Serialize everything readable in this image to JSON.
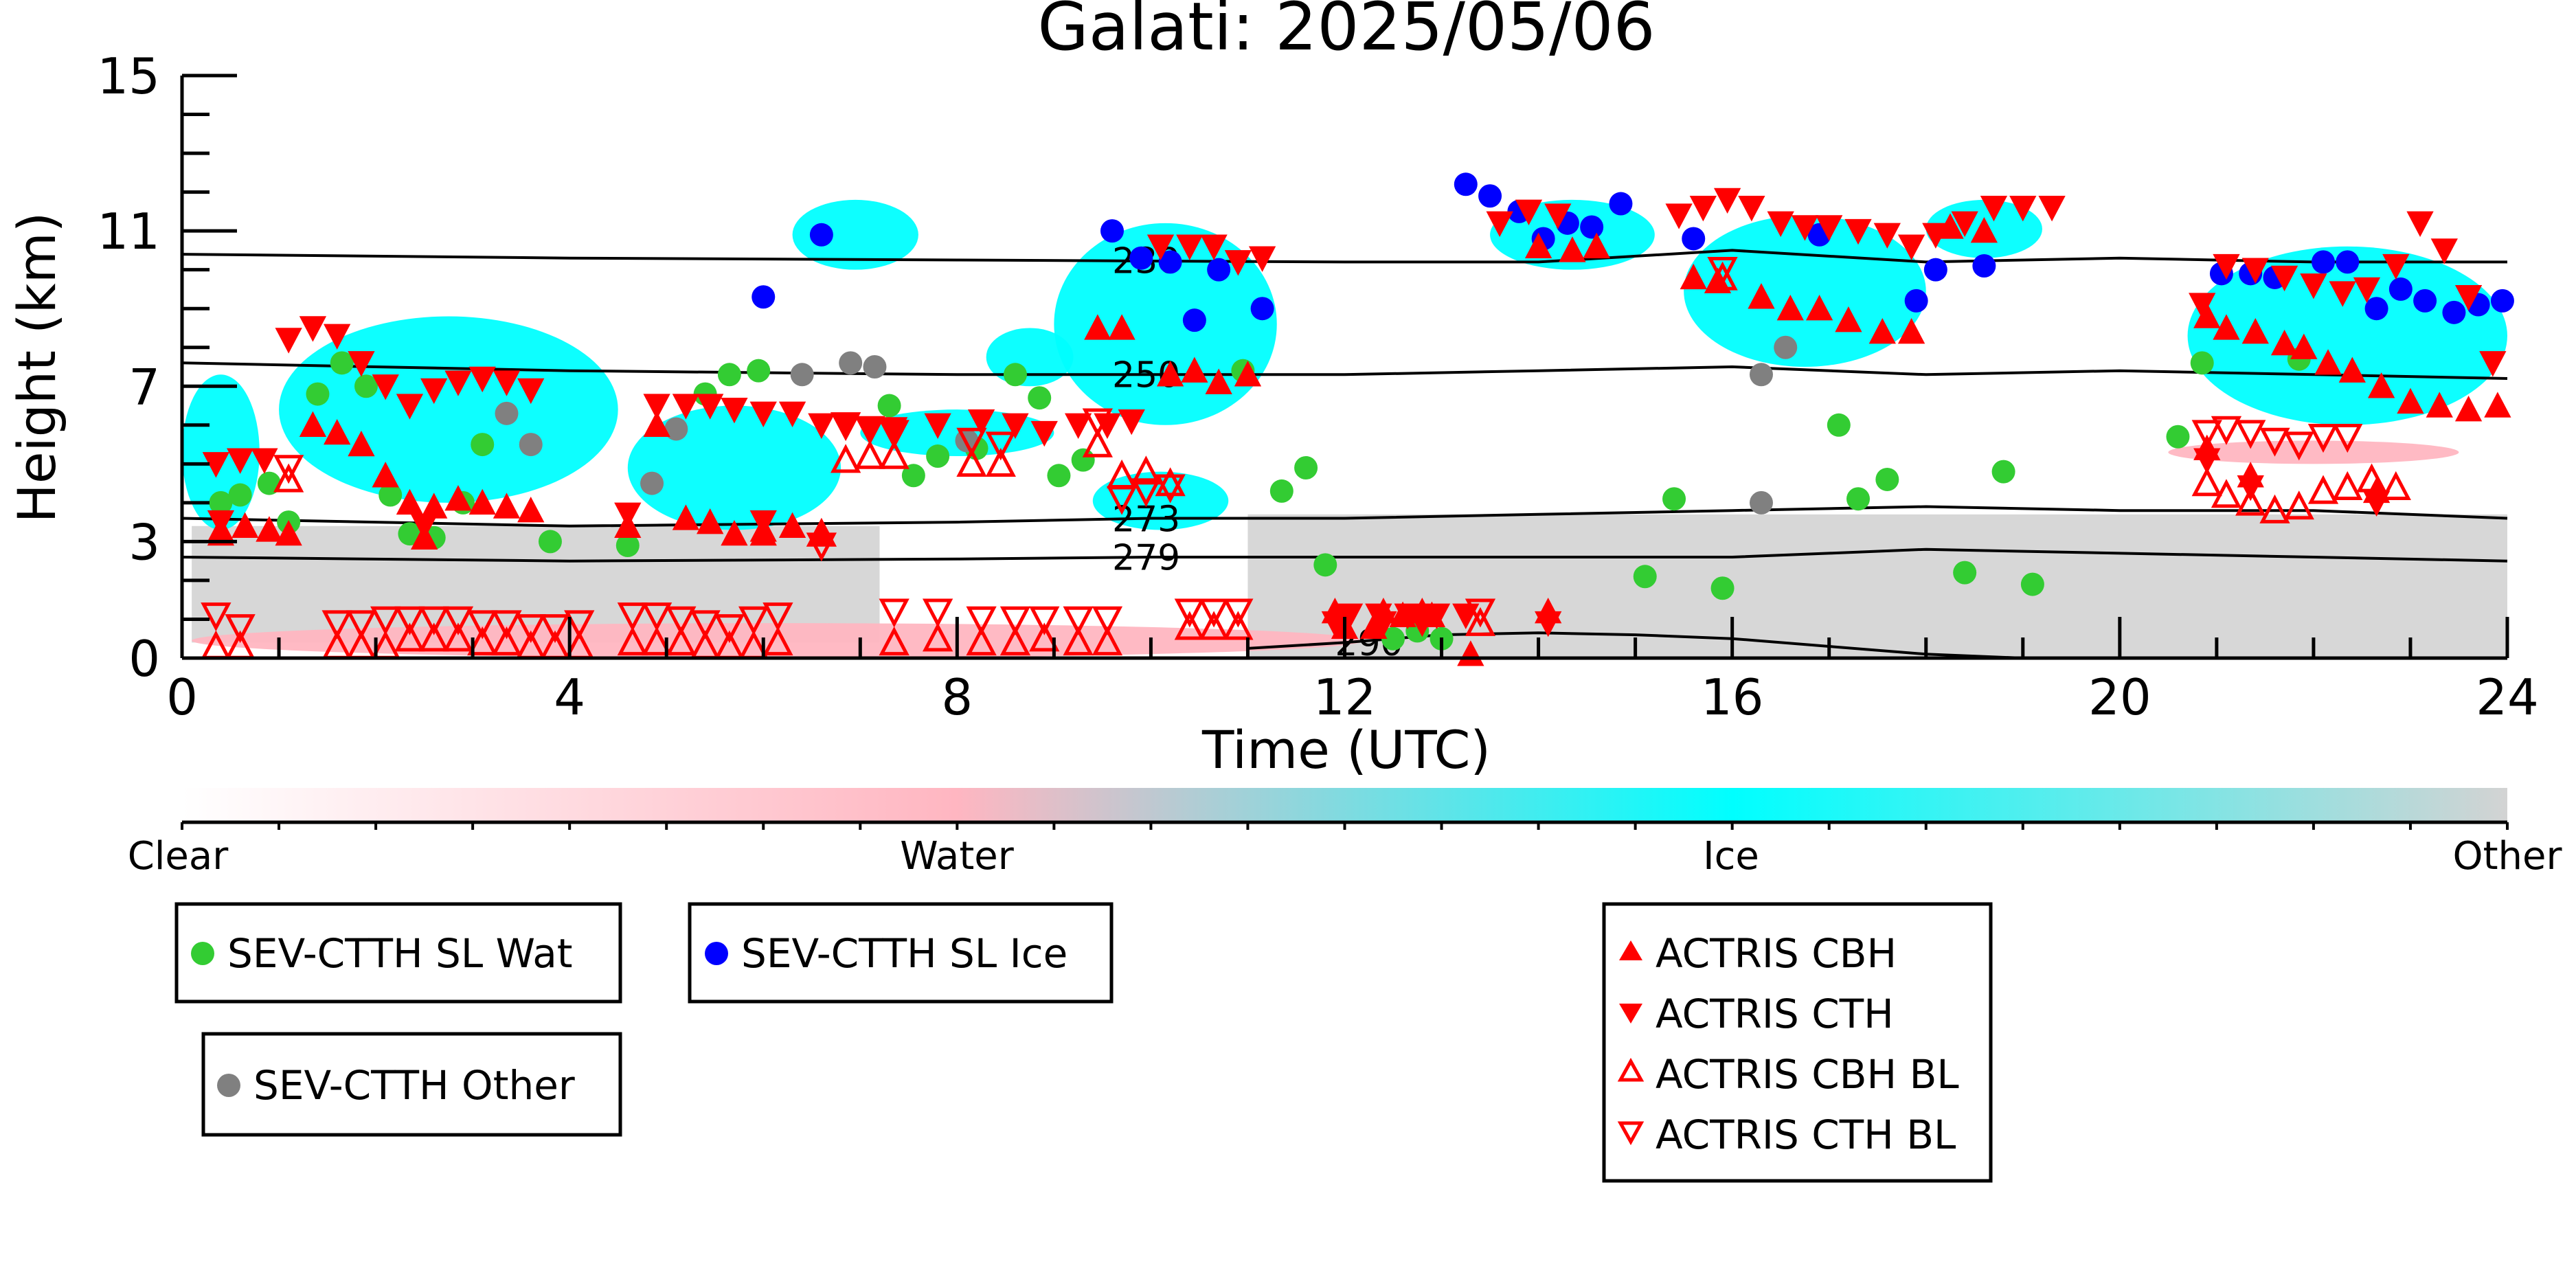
{
  "chart_data": {
    "type": "scatter",
    "title": "Galati: 2025/05/06",
    "xlabel": "Time (UTC)",
    "ylabel": "Height (km)",
    "xlim": [
      0,
      24
    ],
    "ylim": [
      0,
      15
    ],
    "xticks": [
      0,
      4,
      8,
      12,
      16,
      20,
      24
    ],
    "yticks": [
      0,
      3,
      7,
      11,
      15
    ],
    "colorbar": {
      "labels": [
        "Clear",
        "Water",
        "Ice",
        "Other"
      ],
      "colors": [
        "#ffffff",
        "#ffb6c1",
        "#00ffff",
        "#d3d3d3"
      ]
    },
    "contours": [
      {
        "label": "230",
        "label_x": 9.6,
        "points": [
          [
            0,
            10.4
          ],
          [
            4,
            10.3
          ],
          [
            8,
            10.25
          ],
          [
            12,
            10.2
          ],
          [
            14,
            10.2
          ],
          [
            16,
            10.5
          ],
          [
            18,
            10.2
          ],
          [
            20,
            10.3
          ],
          [
            22,
            10.2
          ],
          [
            24,
            10.2
          ]
        ]
      },
      {
        "label": "250",
        "label_x": 9.6,
        "points": [
          [
            0,
            7.6
          ],
          [
            4,
            7.4
          ],
          [
            8,
            7.3
          ],
          [
            10,
            7.3
          ],
          [
            12,
            7.3
          ],
          [
            14,
            7.4
          ],
          [
            16,
            7.5
          ],
          [
            18,
            7.3
          ],
          [
            20,
            7.4
          ],
          [
            22,
            7.3
          ],
          [
            24,
            7.2
          ]
        ]
      },
      {
        "label": "273",
        "label_x": 9.6,
        "points": [
          [
            0,
            3.6
          ],
          [
            4,
            3.4
          ],
          [
            8,
            3.5
          ],
          [
            10,
            3.6
          ],
          [
            12,
            3.6
          ],
          [
            14,
            3.7
          ],
          [
            16,
            3.8
          ],
          [
            18,
            3.9
          ],
          [
            20,
            3.8
          ],
          [
            22,
            3.8
          ],
          [
            24,
            3.6
          ]
        ]
      },
      {
        "label": "279",
        "label_x": 9.6,
        "points": [
          [
            0,
            2.6
          ],
          [
            4,
            2.5
          ],
          [
            8,
            2.55
          ],
          [
            10,
            2.6
          ],
          [
            12,
            2.6
          ],
          [
            14,
            2.6
          ],
          [
            16,
            2.6
          ],
          [
            17,
            2.7
          ],
          [
            18,
            2.8
          ],
          [
            20,
            2.7
          ],
          [
            22,
            2.6
          ],
          [
            24,
            2.5
          ]
        ]
      },
      {
        "label": "290",
        "label_x": 11.9,
        "points": [
          [
            11.0,
            0.25
          ],
          [
            12,
            0.4
          ],
          [
            13,
            0.6
          ],
          [
            14,
            0.65
          ],
          [
            15,
            0.6
          ],
          [
            16,
            0.5
          ],
          [
            17,
            0.3
          ],
          [
            18,
            0.1
          ],
          [
            19,
            0.0
          ]
        ]
      }
    ],
    "cloud_regions": [
      {
        "phase": "Other",
        "x0": 0.1,
        "x1": 7.2,
        "y0": 0.4,
        "y1": 3.4
      },
      {
        "phase": "Other",
        "x0": 11.0,
        "x1": 24.0,
        "y0": 0.0,
        "y1": 3.7
      },
      {
        "phase": "Water",
        "x0": 0.1,
        "x1": 12.2,
        "y0": 0.0,
        "y1": 0.9
      },
      {
        "phase": "Water",
        "x0": 20.5,
        "x1": 23.5,
        "y0": 5.0,
        "y1": 5.6
      },
      {
        "phase": "Ice",
        "x0": 0.0,
        "x1": 0.8,
        "y0": 3.3,
        "y1": 7.3
      },
      {
        "phase": "Ice",
        "x0": 1.0,
        "x1": 4.5,
        "y0": 4.0,
        "y1": 8.8
      },
      {
        "phase": "Ice",
        "x0": 4.6,
        "x1": 6.8,
        "y0": 3.3,
        "y1": 6.5
      },
      {
        "phase": "Ice",
        "x0": 6.3,
        "x1": 7.6,
        "y0": 10.0,
        "y1": 11.8
      },
      {
        "phase": "Ice",
        "x0": 7.0,
        "x1": 9.0,
        "y0": 5.2,
        "y1": 6.4
      },
      {
        "phase": "Ice",
        "x0": 8.3,
        "x1": 9.2,
        "y0": 7.0,
        "y1": 8.5
      },
      {
        "phase": "Ice",
        "x0": 9.0,
        "x1": 11.3,
        "y0": 6.0,
        "y1": 11.2
      },
      {
        "phase": "Ice",
        "x0": 9.4,
        "x1": 10.8,
        "y0": 3.3,
        "y1": 4.8
      },
      {
        "phase": "Ice",
        "x0": 13.5,
        "x1": 15.2,
        "y0": 10.0,
        "y1": 11.8
      },
      {
        "phase": "Ice",
        "x0": 15.5,
        "x1": 18.0,
        "y0": 7.5,
        "y1": 11.4
      },
      {
        "phase": "Ice",
        "x0": 18.0,
        "x1": 19.2,
        "y0": 10.3,
        "y1": 11.8
      },
      {
        "phase": "Ice",
        "x0": 20.7,
        "x1": 24.0,
        "y0": 6.0,
        "y1": 10.6
      }
    ],
    "series": [
      {
        "name": "SEV-CTTH SL Wat",
        "marker": "circle",
        "color": "#33cc33",
        "x": [
          0.4,
          0.6,
          0.9,
          1.1,
          1.4,
          1.65,
          1.9,
          2.15,
          2.35,
          2.6,
          2.9,
          3.1,
          3.8,
          4.6,
          5.4,
          5.65,
          5.95,
          7.3,
          7.55,
          7.8,
          8.2,
          8.6,
          8.85,
          9.05,
          9.3,
          10.95,
          11.35,
          11.6,
          11.8,
          12.5,
          12.75,
          13.0,
          15.1,
          15.4,
          15.9,
          17.1,
          17.3,
          17.6,
          18.4,
          18.8,
          19.1,
          20.6,
          20.85,
          21.85
        ],
        "y": [
          4.0,
          4.2,
          4.5,
          3.5,
          6.8,
          7.6,
          7.0,
          4.2,
          3.2,
          3.1,
          4.0,
          5.5,
          3.0,
          2.9,
          6.8,
          7.3,
          7.4,
          6.5,
          4.7,
          5.2,
          5.4,
          7.3,
          6.7,
          4.7,
          5.1,
          7.4,
          4.3,
          4.9,
          2.4,
          0.5,
          0.7,
          0.5,
          2.1,
          4.1,
          1.8,
          6.0,
          4.1,
          4.6,
          2.2,
          4.8,
          1.9,
          5.7,
          7.6,
          7.7
        ]
      },
      {
        "name": "SEV-CTTH SL Ice",
        "marker": "circle",
        "color": "#0000ff",
        "x": [
          6.0,
          6.6,
          9.6,
          9.9,
          10.2,
          10.45,
          10.7,
          11.15,
          13.25,
          13.5,
          13.8,
          14.05,
          14.3,
          14.55,
          14.85,
          15.6,
          16.9,
          17.9,
          18.1,
          18.6,
          21.05,
          21.35,
          21.6,
          22.1,
          22.35,
          22.65,
          22.9,
          23.15,
          23.45,
          23.7,
          23.95
        ],
        "y": [
          9.3,
          10.9,
          11.0,
          10.3,
          10.2,
          8.7,
          10.0,
          9.0,
          12.2,
          11.9,
          11.5,
          10.8,
          11.2,
          11.1,
          11.7,
          10.8,
          10.9,
          9.2,
          10.0,
          10.1,
          9.9,
          9.9,
          9.8,
          10.2,
          10.2,
          9.0,
          9.5,
          9.2,
          8.9,
          9.1,
          9.2
        ]
      },
      {
        "name": "SEV-CTTH Other",
        "marker": "circle",
        "color": "#808080",
        "x": [
          3.35,
          3.6,
          4.85,
          5.1,
          6.4,
          6.9,
          7.15,
          8.1,
          16.3,
          16.55,
          16.3
        ],
        "y": [
          6.3,
          5.5,
          4.5,
          5.9,
          7.3,
          7.6,
          7.5,
          5.6,
          7.3,
          8.0,
          4.0
        ]
      },
      {
        "name": "ACTRIS CBH",
        "marker": "triangle-up",
        "color": "#ff0000",
        "filled": true,
        "x": [
          0.4,
          0.65,
          0.9,
          1.1,
          1.35,
          1.6,
          1.85,
          2.1,
          2.35,
          2.6,
          2.85,
          3.1,
          3.35,
          3.6,
          4.9,
          5.2,
          5.45,
          5.7,
          6.0,
          6.3,
          6.6,
          9.45,
          9.7,
          10.2,
          10.45,
          10.7,
          11.0,
          12.0,
          12.3,
          12.6,
          12.9,
          13.3,
          14.0,
          14.35,
          14.6,
          15.6,
          15.85,
          16.3,
          16.6,
          16.9,
          17.2,
          17.55,
          17.85,
          18.25,
          18.6,
          20.9,
          21.1,
          21.4,
          21.7,
          21.9,
          22.15,
          22.4,
          22.7,
          23.0,
          23.3,
          23.6,
          23.9
        ],
        "y": [
          3.3,
          3.4,
          3.3,
          3.2,
          6.0,
          5.8,
          5.5,
          4.7,
          4.0,
          3.9,
          4.1,
          4.0,
          3.9,
          3.8,
          6.0,
          3.6,
          3.5,
          3.2,
          3.3,
          3.4,
          3.2,
          8.5,
          8.5,
          7.3,
          7.4,
          7.1,
          7.3,
          0.8,
          0.8,
          1.1,
          1.1,
          0.1,
          10.6,
          10.5,
          10.6,
          9.8,
          9.7,
          9.3,
          9.0,
          9.0,
          8.7,
          8.4,
          8.4,
          11.1,
          11.0,
          8.8,
          8.5,
          8.4,
          8.1,
          8.0,
          7.6,
          7.4,
          7.0,
          6.6,
          6.5,
          6.4,
          6.5
        ],
        "blx": [
          0.4,
          2.5,
          4.6,
          6.0,
          11.9,
          12.4,
          12.8,
          14.1,
          20.9,
          21.35,
          22.65
        ],
        "bly": [
          3.2,
          3.1,
          3.4,
          3.2,
          1.2,
          1.2,
          1.2,
          1.2,
          5.4,
          4.7,
          4.3
        ]
      },
      {
        "name": "ACTRIS CTH",
        "marker": "triangle-down",
        "color": "#ff0000",
        "filled": true,
        "x": [
          0.35,
          0.6,
          0.85,
          1.1,
          1.35,
          1.6,
          1.85,
          2.1,
          2.35,
          2.6,
          2.85,
          3.1,
          3.35,
          3.6,
          4.9,
          5.2,
          5.45,
          5.7,
          6.0,
          6.3,
          6.6,
          6.85,
          7.1,
          7.35,
          7.8,
          8.25,
          8.6,
          8.9,
          9.25,
          9.55,
          9.8,
          10.1,
          10.4,
          10.65,
          10.9,
          11.15,
          12.05,
          12.35,
          12.65,
          12.95,
          13.25,
          13.6,
          13.9,
          14.2,
          15.45,
          15.7,
          15.95,
          16.2,
          16.5,
          16.75,
          17.0,
          17.3,
          17.6,
          17.85,
          18.1,
          18.4,
          18.7,
          19.0,
          19.3,
          20.85,
          21.1,
          21.4,
          21.7,
          22.0,
          22.3,
          22.55,
          22.85,
          23.1,
          23.35,
          23.6,
          23.85
        ],
        "y": [
          5.0,
          5.1,
          5.1,
          8.2,
          8.5,
          8.3,
          7.6,
          7.0,
          6.5,
          6.9,
          7.1,
          7.2,
          7.1,
          6.9,
          6.5,
          6.5,
          6.5,
          6.4,
          6.3,
          6.3,
          6.0,
          6.0,
          5.9,
          5.9,
          6.0,
          6.1,
          6.0,
          5.8,
          6.0,
          6.0,
          6.1,
          10.6,
          10.6,
          10.6,
          10.2,
          10.3,
          1.1,
          1.1,
          1.1,
          1.1,
          1.1,
          11.2,
          11.5,
          11.4,
          11.4,
          11.6,
          11.8,
          11.6,
          11.2,
          11.1,
          11.1,
          11.0,
          10.9,
          10.6,
          10.9,
          11.2,
          11.6,
          11.6,
          11.6,
          9.1,
          10.1,
          10.0,
          9.8,
          9.6,
          9.4,
          9.5,
          10.1,
          11.2,
          10.5,
          9.3,
          7.6
        ],
        "blx": [
          0.4,
          2.5,
          4.6,
          6.0,
          11.9,
          12.4,
          12.8,
          14.1,
          20.9,
          21.35,
          22.65
        ],
        "bly": [
          3.5,
          3.4,
          3.7,
          3.5,
          0.9,
          0.9,
          0.9,
          0.9,
          5.1,
          4.4,
          4.0
        ]
      },
      {
        "name": "ACTRIS CBH BL",
        "marker": "triangle-up",
        "color": "#ff0000",
        "filled": false,
        "x": [
          0.35,
          0.6,
          1.6,
          1.85,
          2.1,
          2.35,
          2.6,
          2.85,
          3.1,
          3.35,
          3.6,
          3.85,
          4.1,
          4.65,
          4.9,
          5.15,
          5.4,
          5.65,
          5.9,
          6.15,
          7.35,
          7.8,
          8.25,
          8.6,
          8.9,
          9.25,
          9.55,
          10.4,
          10.65,
          10.9,
          13.4,
          15.9,
          20.9,
          21.1,
          21.35,
          21.6,
          21.85,
          22.1,
          22.35,
          22.6,
          22.85
        ],
        "y": [
          0.3,
          0.3,
          0.3,
          0.3,
          0.3,
          0.5,
          0.5,
          0.5,
          0.4,
          0.4,
          0.3,
          0.3,
          0.3,
          0.4,
          0.4,
          0.4,
          0.3,
          0.3,
          0.3,
          0.4,
          0.4,
          0.5,
          0.4,
          0.4,
          0.5,
          0.4,
          0.4,
          0.8,
          0.8,
          0.8,
          0.9,
          9.8,
          4.5,
          4.2,
          4.0,
          3.8,
          3.9,
          4.3,
          4.4,
          4.6,
          4.4
        ],
        "blx": [
          1.1,
          6.6,
          6.85,
          7.1,
          7.35,
          8.15,
          8.45,
          9.45,
          9.7,
          9.95,
          10.2
        ],
        "bly": [
          4.6,
          3.2,
          5.1,
          5.2,
          5.2,
          5.0,
          5.0,
          5.5,
          4.7,
          4.8,
          4.5
        ]
      },
      {
        "name": "ACTRIS CTH BL",
        "marker": "triangle-down",
        "color": "#ff0000",
        "filled": false,
        "x": [
          0.35,
          0.6,
          1.6,
          1.85,
          2.1,
          2.35,
          2.6,
          2.85,
          3.1,
          3.35,
          3.6,
          3.85,
          4.1,
          4.65,
          4.9,
          5.15,
          5.4,
          5.65,
          5.9,
          6.15,
          7.35,
          7.8,
          8.25,
          8.6,
          8.9,
          9.25,
          9.55,
          10.4,
          10.65,
          10.9,
          13.4,
          15.9,
          20.9,
          21.1,
          21.35,
          21.6,
          21.85,
          22.1,
          22.35
        ],
        "y": [
          1.1,
          0.8,
          0.9,
          0.9,
          1.0,
          1.0,
          1.0,
          1.0,
          0.9,
          0.9,
          0.8,
          0.8,
          0.9,
          1.1,
          1.1,
          1.0,
          0.9,
          0.8,
          1.0,
          1.1,
          1.2,
          1.2,
          1.0,
          1.0,
          1.0,
          1.0,
          1.0,
          1.2,
          1.2,
          1.2,
          1.2,
          10.0,
          5.8,
          5.9,
          5.8,
          5.6,
          5.5,
          5.7,
          5.7
        ],
        "blx": [
          1.1,
          6.6,
          6.85,
          7.1,
          7.35,
          8.15,
          8.45,
          9.45,
          9.7,
          9.95,
          10.2
        ],
        "bly": [
          4.9,
          2.9,
          6.0,
          5.9,
          5.8,
          5.6,
          5.5,
          6.1,
          4.1,
          4.3,
          4.4
        ]
      }
    ]
  }
}
